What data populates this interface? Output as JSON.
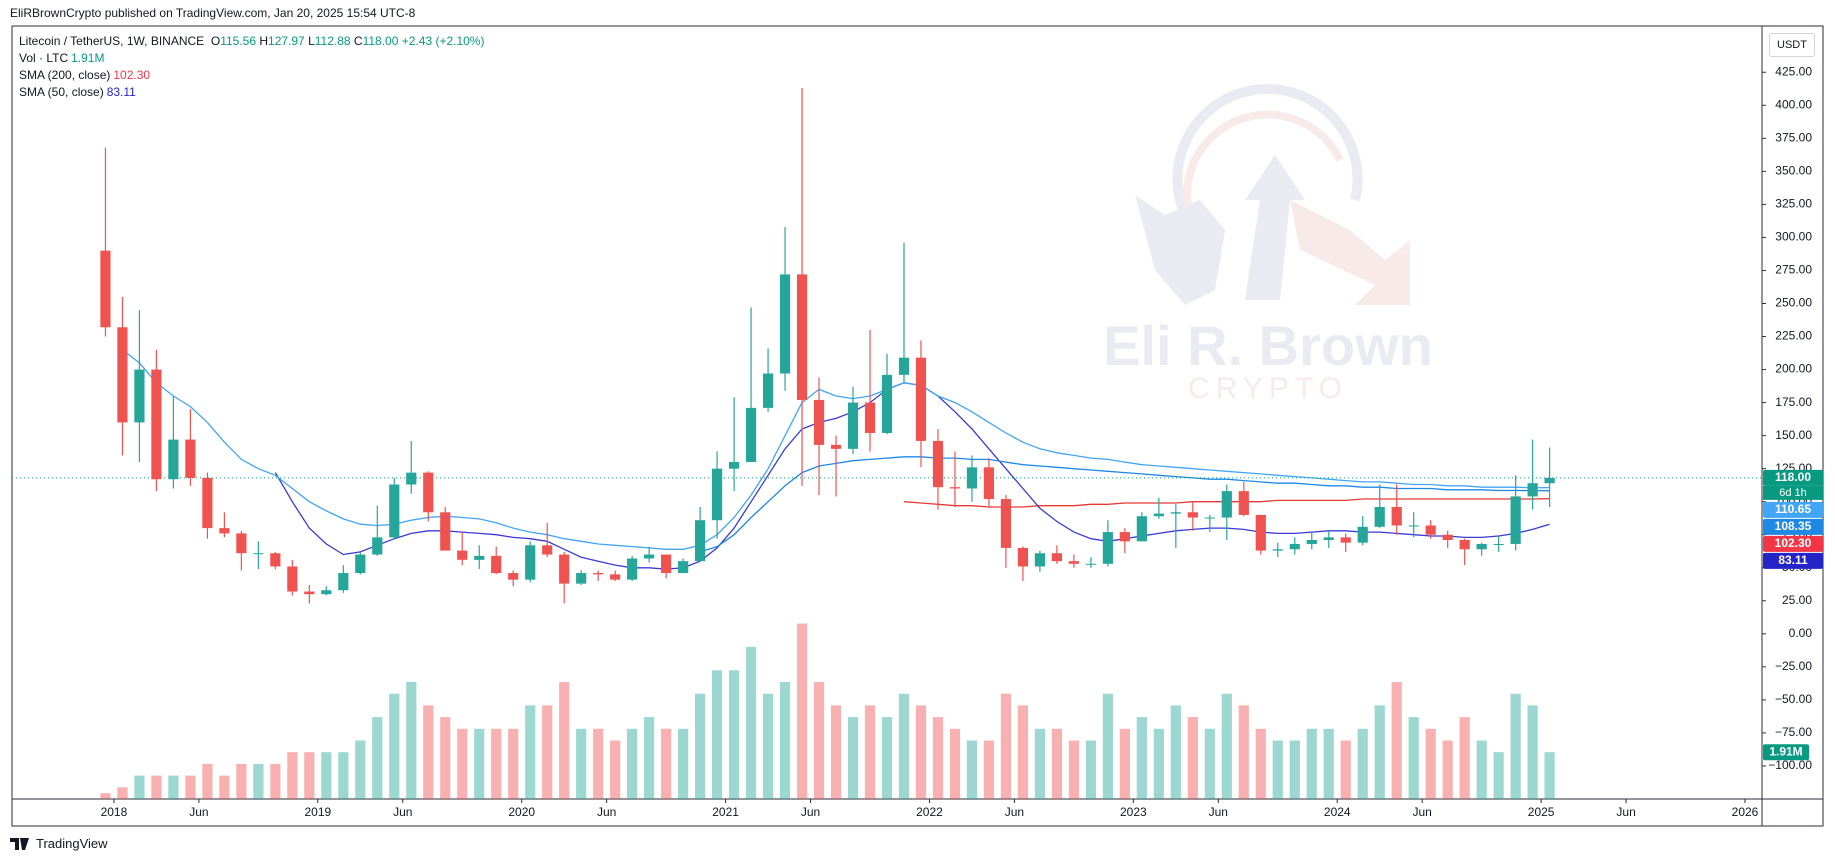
{
  "header": {
    "text": "EliRBrownCrypto published on TradingView.com, Jan 20, 2025 15:54 UTC-8"
  },
  "footer": {
    "text": "TradingView"
  },
  "currency_button": "USDT",
  "legend": {
    "symbol": "Litecoin / TetherUS, 1W, BINANCE",
    "ohlc": [
      {
        "label": "O",
        "value": "115.56"
      },
      {
        "label": "H",
        "value": "127.97"
      },
      {
        "label": "L",
        "value": "112.88"
      },
      {
        "label": "C",
        "value": "118.00"
      }
    ],
    "change": "+2.43 (+2.10%)",
    "volume_label": "Vol · LTC",
    "volume_value": "1.91M"
  },
  "watermark": {
    "name": "Eli R. Brown",
    "sub": "CRYPTO"
  },
  "chart_data": {
    "type": "candlestick",
    "up_color": "#26a69a",
    "down_color": "#ef5350",
    "x": [
      "2017-12",
      "2018-01",
      "2018-02",
      "2018-03",
      "2018-04",
      "2018-05",
      "2018-06",
      "2018-07",
      "2018-08",
      "2018-09",
      "2018-10",
      "2018-11",
      "2018-12",
      "2019-01",
      "2019-02",
      "2019-03",
      "2019-04",
      "2019-05",
      "2019-06",
      "2019-07",
      "2019-08",
      "2019-09",
      "2019-10",
      "2019-11",
      "2019-12",
      "2020-01",
      "2020-02",
      "2020-03",
      "2020-04",
      "2020-05",
      "2020-06",
      "2020-07",
      "2020-08",
      "2020-09",
      "2020-10",
      "2020-11",
      "2020-12",
      "2021-01",
      "2021-02",
      "2021-03",
      "2021-04",
      "2021-05",
      "2021-06",
      "2021-07",
      "2021-08",
      "2021-09",
      "2021-10",
      "2021-11",
      "2021-12",
      "2022-01",
      "2022-02",
      "2022-03",
      "2022-04",
      "2022-05",
      "2022-06",
      "2022-07",
      "2022-08",
      "2022-09",
      "2022-10",
      "2022-11",
      "2022-12",
      "2023-01",
      "2023-02",
      "2023-03",
      "2023-04",
      "2023-05",
      "2023-06",
      "2023-07",
      "2023-08",
      "2023-09",
      "2023-10",
      "2023-11",
      "2023-12",
      "2024-01",
      "2024-02",
      "2024-03",
      "2024-04",
      "2024-05",
      "2024-06",
      "2024-07",
      "2024-08",
      "2024-09",
      "2024-10",
      "2024-11",
      "2024-12",
      "2025-01"
    ],
    "open": [
      290,
      232,
      160,
      200,
      117,
      147,
      118,
      80,
      76,
      61,
      61,
      51,
      32,
      30,
      33,
      46,
      60,
      73,
      113,
      122,
      92,
      63,
      56,
      59,
      46,
      41,
      67,
      60,
      38,
      46,
      45,
      41,
      57,
      60,
      46,
      55,
      86,
      125,
      130,
      171,
      197,
      272,
      177,
      143,
      140,
      175,
      152,
      196,
      209,
      146,
      111,
      110,
      126,
      102,
      65,
      51,
      61,
      55,
      53,
      53,
      77,
      70,
      89,
      91,
      92,
      88,
      88,
      108,
      90,
      63,
      64,
      68,
      71,
      73,
      69,
      81,
      96,
      82,
      82,
      75,
      71,
      64,
      68,
      68,
      104,
      114
    ],
    "high": [
      368,
      255,
      245,
      215,
      180,
      170,
      122,
      92,
      78,
      70,
      62,
      56,
      37,
      36,
      52,
      62,
      97,
      118,
      146,
      123,
      96,
      77,
      67,
      66,
      48,
      70,
      84,
      62,
      48,
      48,
      48,
      59,
      66,
      60,
      57,
      96,
      138,
      179,
      247,
      216,
      308,
      413,
      194,
      150,
      187,
      230,
      212,
      296,
      222,
      155,
      138,
      135,
      133,
      105,
      66,
      63,
      67,
      60,
      58,
      86,
      80,
      92,
      103,
      98,
      100,
      90,
      113,
      115,
      90,
      69,
      73,
      77,
      78,
      76,
      89,
      113,
      113,
      92,
      86,
      78,
      72,
      69,
      74,
      120,
      147,
      141
    ],
    "low": [
      225,
      135,
      130,
      108,
      110,
      112,
      72,
      73,
      48,
      49,
      49,
      29,
      23,
      29,
      31,
      45,
      59,
      72,
      106,
      85,
      63,
      52,
      49,
      45,
      36,
      39,
      58,
      23,
      37,
      40,
      40,
      40,
      54,
      42,
      46,
      55,
      72,
      108,
      130,
      168,
      184,
      112,
      105,
      104,
      136,
      138,
      151,
      190,
      126,
      94,
      96,
      100,
      96,
      50,
      40,
      47,
      53,
      50,
      50,
      51,
      61,
      70,
      87,
      65,
      78,
      77,
      71,
      89,
      60,
      58,
      60,
      64,
      65,
      62,
      67,
      80,
      75,
      73,
      72,
      65,
      52,
      59,
      62,
      63,
      94,
      96
    ],
    "close": [
      232,
      160,
      200,
      117,
      147,
      118,
      80,
      76,
      61,
      61,
      51,
      32,
      30,
      33,
      46,
      60,
      73,
      113,
      122,
      92,
      63,
      56,
      59,
      46,
      41,
      67,
      60,
      38,
      46,
      45,
      41,
      57,
      60,
      46,
      55,
      86,
      125,
      130,
      171,
      197,
      272,
      177,
      143,
      140,
      175,
      152,
      196,
      209,
      146,
      111,
      110,
      126,
      102,
      65,
      51,
      61,
      55,
      53,
      53,
      77,
      70,
      89,
      91,
      92,
      88,
      88,
      108,
      90,
      63,
      64,
      68,
      71,
      73,
      69,
      81,
      96,
      82,
      82,
      75,
      71,
      64,
      68,
      68,
      104,
      114,
      118
    ],
    "volume": [
      0.5,
      1,
      2,
      2,
      2,
      2,
      3,
      2,
      3,
      3,
      3,
      4,
      4,
      4,
      4,
      5,
      7,
      9,
      10,
      8,
      7,
      6,
      6,
      6,
      6,
      8,
      8,
      10,
      6,
      6,
      5,
      6,
      7,
      6,
      6,
      9,
      11,
      11,
      13,
      9,
      10,
      15,
      10,
      8,
      7,
      8,
      7,
      9,
      8,
      7,
      6,
      5,
      5,
      9,
      8,
      6,
      6,
      5,
      5,
      9,
      6,
      7,
      6,
      8,
      7,
      6,
      9,
      8,
      6,
      5,
      5,
      6,
      6,
      5,
      6,
      8,
      10,
      7,
      6,
      5,
      7,
      5,
      4,
      9,
      8,
      4
    ],
    "series": [
      {
        "name": "SMA (200, close)",
        "color": "#e53935",
        "values": [
          null,
          null,
          null,
          null,
          null,
          null,
          null,
          null,
          null,
          null,
          null,
          null,
          null,
          null,
          null,
          null,
          null,
          null,
          null,
          null,
          null,
          null,
          null,
          null,
          null,
          null,
          null,
          null,
          null,
          null,
          null,
          null,
          null,
          null,
          null,
          null,
          null,
          null,
          null,
          null,
          null,
          null,
          null,
          null,
          null,
          null,
          null,
          100,
          99,
          98,
          97,
          97,
          96,
          96,
          96,
          97,
          97,
          97,
          98,
          98,
          99,
          99,
          99,
          99,
          100,
          100,
          100,
          100,
          100,
          101,
          101,
          101,
          101,
          101,
          102,
          102,
          102,
          102,
          102,
          102,
          102,
          102,
          102,
          102,
          102,
          102.3
        ]
      },
      {
        "name": "SMA (50, close)",
        "color": "#3a3ad6",
        "values": [
          null,
          null,
          null,
          null,
          null,
          null,
          null,
          null,
          null,
          null,
          122,
          100,
          80,
          68,
          60,
          62,
          67,
          72,
          76,
          78,
          78,
          77,
          76,
          75,
          73,
          72,
          70,
          64,
          58,
          55,
          52,
          50,
          50,
          49,
          50,
          55,
          65,
          80,
          100,
          120,
          140,
          155,
          160,
          163,
          168,
          175,
          185,
          190,
          188,
          180,
          168,
          155,
          140,
          125,
          110,
          95,
          85,
          77,
          72,
          70,
          72,
          74,
          76,
          78,
          79,
          80,
          80,
          79,
          77,
          76,
          76,
          77,
          78,
          78,
          77,
          77,
          76,
          75,
          74,
          74,
          73,
          73,
          74,
          76,
          79,
          83
        ]
      },
      {
        "color": "#42a5f5",
        "values": [
          null,
          215,
          205,
          190,
          180,
          172,
          160,
          145,
          132,
          125,
          120,
          110,
          100,
          93,
          87,
          83,
          82,
          83,
          86,
          88,
          89,
          88,
          87,
          84,
          80,
          77,
          75,
          72,
          70,
          68,
          67,
          66,
          65,
          64,
          64,
          67,
          75,
          88,
          105,
          125,
          150,
          175,
          185,
          180,
          178,
          180,
          185,
          190,
          188,
          180,
          175,
          168,
          160,
          152,
          145,
          140,
          137,
          135,
          133,
          132,
          130,
          128,
          127,
          126,
          125,
          124,
          123,
          122,
          121,
          120,
          119,
          118,
          117,
          116,
          115,
          115,
          114,
          113,
          113,
          112,
          112,
          111,
          111,
          111,
          110.5,
          110.65
        ]
      },
      {
        "color": "#1e88e5",
        "values": [
          null,
          null,
          null,
          null,
          null,
          null,
          null,
          null,
          null,
          null,
          null,
          null,
          null,
          null,
          null,
          null,
          null,
          null,
          null,
          null,
          null,
          null,
          null,
          null,
          null,
          null,
          null,
          null,
          null,
          null,
          null,
          null,
          null,
          null,
          null,
          62,
          66,
          75,
          88,
          100,
          112,
          122,
          127,
          129,
          131,
          132,
          133,
          134,
          134,
          133,
          133,
          132,
          132,
          130,
          128,
          127,
          126,
          125,
          124,
          123,
          122,
          121,
          120,
          119,
          118,
          117,
          117,
          116,
          115,
          114,
          114,
          113,
          112,
          112,
          111,
          111,
          110,
          110,
          110,
          109,
          109,
          109,
          108.5,
          108.5,
          108.4,
          108.35
        ]
      }
    ],
    "price_tags": [
      {
        "value": 118,
        "label": "118.00",
        "color": "#089981",
        "sub": "6d 1h"
      },
      {
        "value": 110.65,
        "label": "110.65",
        "color": "#42a5f5"
      },
      {
        "value": 108.35,
        "label": "108.35",
        "color": "#1e88e5"
      },
      {
        "value": 102.3,
        "label": "102.30",
        "color": "#f23645"
      },
      {
        "value": 83.11,
        "label": "83.11",
        "color": "#2424c8"
      }
    ],
    "xlim": [
      "2017-07",
      "2026-02"
    ],
    "xticks": [
      {
        "value": "2018-01",
        "label": "2018"
      },
      {
        "value": "2018-06",
        "label": "Jun"
      },
      {
        "value": "2019-01",
        "label": "2019"
      },
      {
        "value": "2019-06",
        "label": "Jun"
      },
      {
        "value": "2020-01",
        "label": "2020"
      },
      {
        "value": "2020-06",
        "label": "Jun"
      },
      {
        "value": "2021-01",
        "label": "2021"
      },
      {
        "value": "2021-06",
        "label": "Jun"
      },
      {
        "value": "2022-01",
        "label": "2022"
      },
      {
        "value": "2022-06",
        "label": "Jun"
      },
      {
        "value": "2023-01",
        "label": "2023"
      },
      {
        "value": "2023-06",
        "label": "Jun"
      },
      {
        "value": "2024-01",
        "label": "2024"
      },
      {
        "value": "2024-06",
        "label": "Jun"
      },
      {
        "value": "2025-01",
        "label": "2025"
      },
      {
        "value": "2025-06",
        "label": "Jun"
      },
      {
        "value": "2026-01",
        "label": "2026"
      }
    ],
    "ylim": [
      -125,
      460
    ],
    "yticks": [
      {
        "value": -100,
        "label": "−100.00"
      },
      {
        "value": -75,
        "label": "−75.00"
      },
      {
        "value": -50,
        "label": "−50.00"
      },
      {
        "value": -25,
        "label": "−25.00"
      },
      {
        "value": 0,
        "label": "0.00"
      },
      {
        "value": 25,
        "label": "25.00"
      },
      {
        "value": 50,
        "label": "50.00"
      },
      {
        "value": 75,
        "label": "75.00"
      },
      {
        "value": 100,
        "label": "100.00"
      },
      {
        "value": 125,
        "label": "125.00"
      },
      {
        "value": 150,
        "label": "150.00"
      },
      {
        "value": 175,
        "label": "175.00"
      },
      {
        "value": 200,
        "label": "200.00"
      },
      {
        "value": 225,
        "label": "225.00"
      },
      {
        "value": 250,
        "label": "250.00"
      },
      {
        "value": 275,
        "label": "275.00"
      },
      {
        "value": 300,
        "label": "300.00"
      },
      {
        "value": 325,
        "label": "325.00"
      },
      {
        "value": 350,
        "label": "350.00"
      },
      {
        "value": 375,
        "label": "375.00"
      },
      {
        "value": 400,
        "label": "400.00"
      },
      {
        "value": 425,
        "label": "425.00"
      }
    ],
    "grid": false
  }
}
